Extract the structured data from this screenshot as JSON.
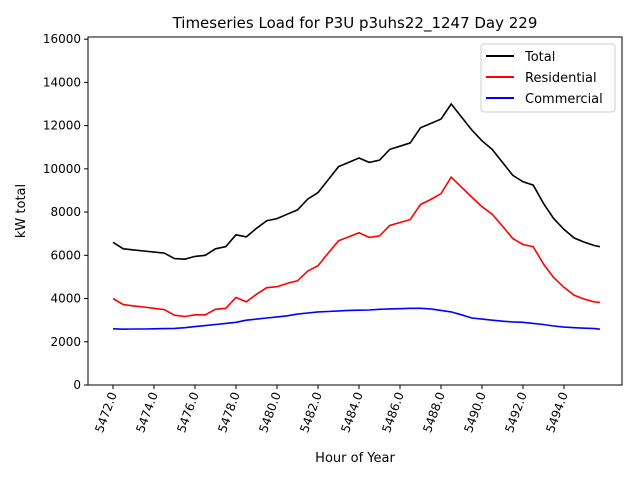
{
  "chart_data": {
    "type": "line",
    "title": "Timeseries Load for P3U p3uhs22_1247  Day 229",
    "xlabel": "Hour of Year",
    "ylabel": "kW total",
    "xlim": [
      5470.78,
      5496.83
    ],
    "ylim": [
      0,
      16100
    ],
    "xticks": [
      5472,
      5474,
      5476,
      5478,
      5480,
      5482,
      5484,
      5486,
      5488,
      5490,
      5492,
      5494
    ],
    "xtick_labels": [
      "5472.0",
      "5474.0",
      "5476.0",
      "5478.0",
      "5480.0",
      "5482.0",
      "5484.0",
      "5486.0",
      "5488.0",
      "5490.0",
      "5492.0",
      "5494.0"
    ],
    "yticks": [
      0,
      2000,
      4000,
      6000,
      8000,
      10000,
      12000,
      14000,
      16000
    ],
    "ytick_labels": [
      "0",
      "2000",
      "4000",
      "6000",
      "8000",
      "10000",
      "12000",
      "14000",
      "16000"
    ],
    "grid": false,
    "legend_position": "top-right",
    "x": [
      5472,
      5472.5,
      5473,
      5473.5,
      5474,
      5474.5,
      5475,
      5475.5,
      5476,
      5476.5,
      5477,
      5477.5,
      5478,
      5478.5,
      5479,
      5479.5,
      5480,
      5480.5,
      5481,
      5481.5,
      5482,
      5482.5,
      5483,
      5483.5,
      5484,
      5484.5,
      5485,
      5485.5,
      5486,
      5486.5,
      5487,
      5487.5,
      5488,
      5488.5,
      5489,
      5489.5,
      5490,
      5490.5,
      5491,
      5491.5,
      5492,
      5492.5,
      5493,
      5493.5,
      5494,
      5494.5,
      5495,
      5495.5,
      5495.75
    ],
    "series": [
      {
        "name": "Total",
        "color": "#000000",
        "values": [
          6600,
          6300,
          6250,
          6200,
          6150,
          6100,
          5850,
          5820,
          5950,
          6000,
          6300,
          6400,
          6950,
          6850,
          7250,
          7600,
          7700,
          7900,
          8100,
          8600,
          8900,
          9500,
          10100,
          10300,
          10500,
          10300,
          10400,
          10900,
          11050,
          11200,
          11900,
          12100,
          12300,
          13000,
          12400,
          11800,
          11300,
          10900,
          10300,
          9700,
          9400,
          9250,
          8400,
          7700,
          7200,
          6800,
          6600,
          6450,
          6400
        ]
      },
      {
        "name": "Residential",
        "color": "#ff0000",
        "values": [
          4000,
          3720,
          3660,
          3610,
          3550,
          3490,
          3230,
          3170,
          3250,
          3250,
          3500,
          3550,
          4050,
          3850,
          4200,
          4500,
          4550,
          4700,
          4820,
          5270,
          5520,
          6100,
          6670,
          6850,
          7040,
          6830,
          6900,
          7380,
          7520,
          7650,
          8350,
          8580,
          8850,
          9620,
          9150,
          8700,
          8250,
          7900,
          7350,
          6780,
          6500,
          6400,
          5600,
          4970,
          4520,
          4150,
          3970,
          3840,
          3820
        ]
      },
      {
        "name": "Commercial",
        "color": "#0000ff",
        "values": [
          2600,
          2580,
          2590,
          2590,
          2600,
          2610,
          2620,
          2650,
          2700,
          2750,
          2800,
          2850,
          2900,
          3000,
          3050,
          3100,
          3150,
          3200,
          3280,
          3330,
          3380,
          3400,
          3430,
          3450,
          3460,
          3470,
          3500,
          3520,
          3530,
          3550,
          3550,
          3520,
          3450,
          3380,
          3250,
          3100,
          3050,
          3000,
          2950,
          2920,
          2900,
          2850,
          2800,
          2730,
          2680,
          2650,
          2630,
          2610,
          2580
        ]
      }
    ]
  }
}
